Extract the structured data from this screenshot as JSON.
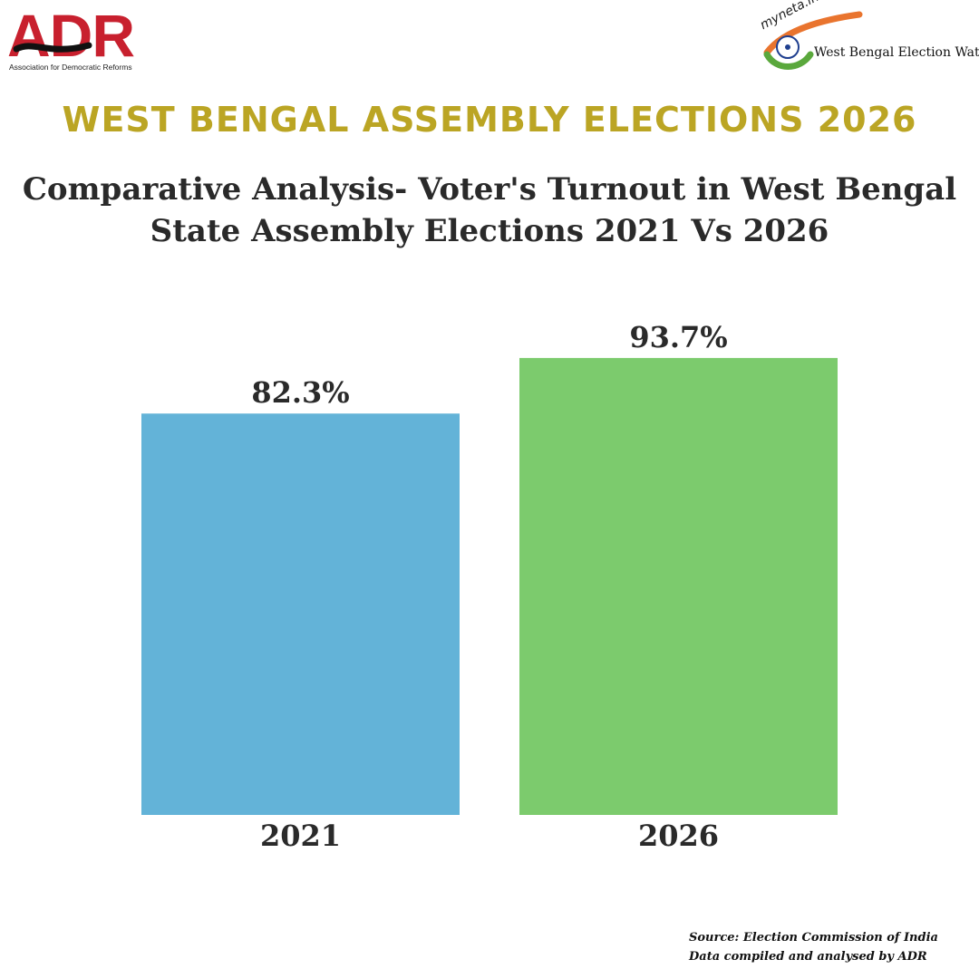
{
  "header": {
    "adr_logo_text": "ADR",
    "adr_tagline": "Association for Democratic Reforms",
    "myneta_logo_text": "myneta.info",
    "myneta_caption": "West Bengal Election Watch"
  },
  "colors": {
    "title": "#bba524",
    "bar_2021": "#63b3d8",
    "bar_2026": "#7ccb6d",
    "adr_red": "#c8202e"
  },
  "chart_data": {
    "type": "bar",
    "title": "WEST BENGAL ASSEMBLY ELECTIONS 2026",
    "subtitle_lines": [
      "Comparative Analysis- Voter's Turnout in West Bengal",
      "State Assembly Elections 2021 Vs 2026"
    ],
    "categories": [
      "2021",
      "2026"
    ],
    "values": [
      82.3,
      93.7
    ],
    "value_labels": [
      "82.3%",
      "93.7%"
    ],
    "xlabel": "",
    "ylabel": "",
    "ylim": [
      0,
      100
    ],
    "grid": false,
    "legend": "none"
  },
  "footer": {
    "source": "Source: Election Commission of India",
    "credit": "Data compiled and analysed by ADR"
  }
}
